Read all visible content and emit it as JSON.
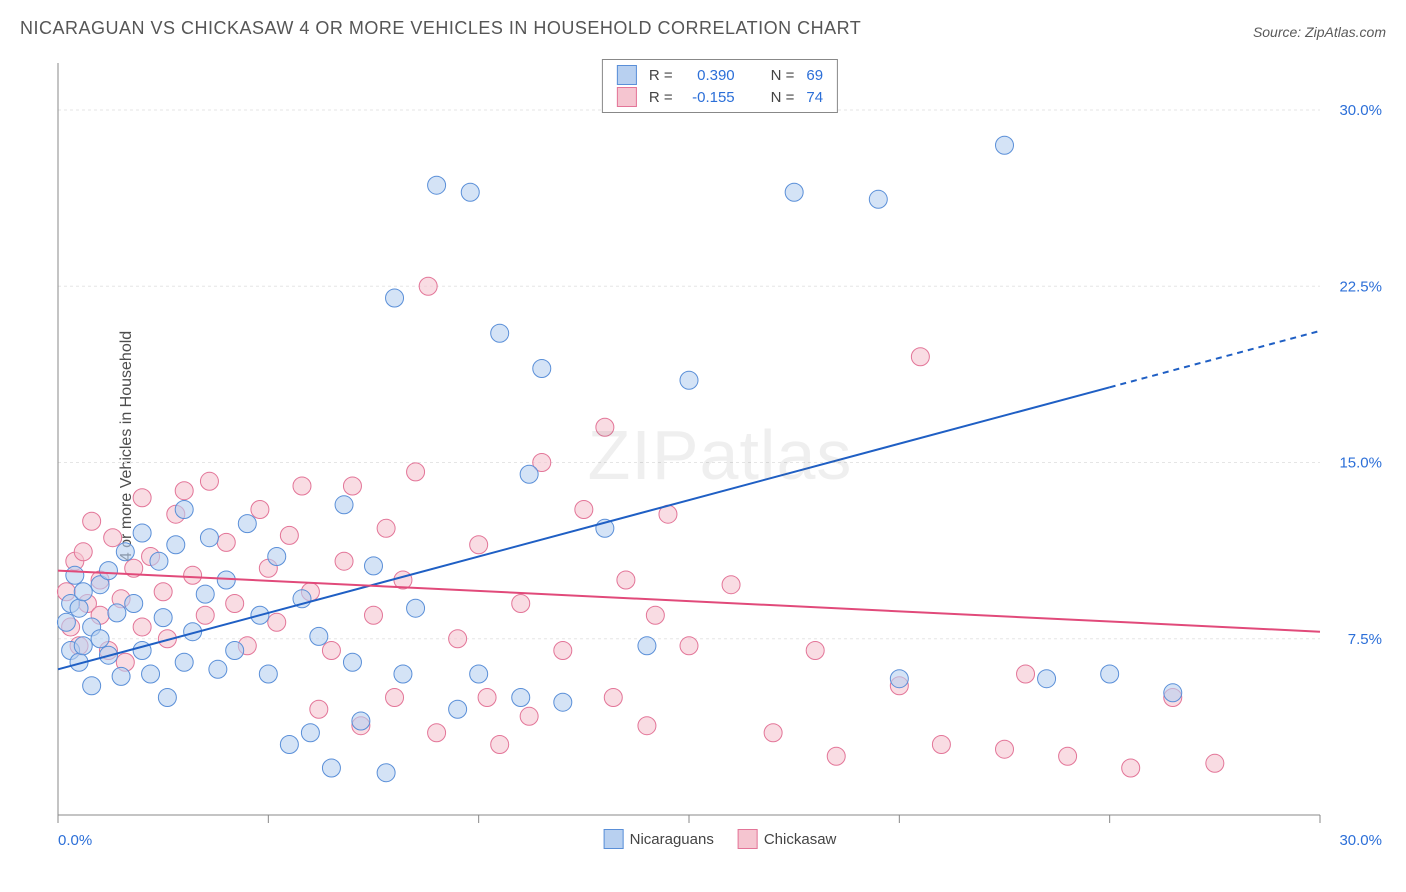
{
  "title": "NICARAGUAN VS CHICKASAW 4 OR MORE VEHICLES IN HOUSEHOLD CORRELATION CHART",
  "source_label": "Source: ZipAtlas.com",
  "ylabel": "4 or more Vehicles in Household",
  "watermark": "ZIPatlas",
  "chart": {
    "type": "scatter-correlation",
    "x_domain": [
      0,
      30
    ],
    "y_domain": [
      0,
      32
    ],
    "x_min_label": "0.0%",
    "x_max_label": "30.0%",
    "y_ticks": [
      7.5,
      15.0,
      22.5,
      30.0
    ],
    "y_tick_labels": [
      "7.5%",
      "15.0%",
      "22.5%",
      "30.0%"
    ],
    "x_minor_step": 5,
    "background_color": "#ffffff",
    "grid_color": "#e5e5e5",
    "axis_color": "#888888",
    "tick_label_color": "#2c6fd8",
    "series": [
      {
        "name": "Nicaraguans",
        "fill": "#b8d0f0",
        "stroke": "#5a8fd8",
        "marker_radius": 9,
        "marker_opacity": 0.6,
        "R": "0.390",
        "N": "69",
        "trend": {
          "x1": 0,
          "y1": 6.2,
          "x2": 25,
          "y2": 18.2,
          "dash_from_x": 25,
          "dash_to_x": 30,
          "dash_to_y": 20.6,
          "color": "#1f5fc4",
          "width": 2
        },
        "points": [
          [
            0.2,
            8.2
          ],
          [
            0.3,
            7.0
          ],
          [
            0.3,
            9.0
          ],
          [
            0.4,
            10.2
          ],
          [
            0.5,
            6.5
          ],
          [
            0.5,
            8.8
          ],
          [
            0.6,
            7.2
          ],
          [
            0.6,
            9.5
          ],
          [
            0.8,
            5.5
          ],
          [
            0.8,
            8.0
          ],
          [
            1.0,
            9.8
          ],
          [
            1.0,
            7.5
          ],
          [
            1.2,
            6.8
          ],
          [
            1.2,
            10.4
          ],
          [
            1.4,
            8.6
          ],
          [
            1.5,
            5.9
          ],
          [
            1.6,
            11.2
          ],
          [
            1.8,
            9.0
          ],
          [
            2.0,
            7.0
          ],
          [
            2.0,
            12.0
          ],
          [
            2.2,
            6.0
          ],
          [
            2.4,
            10.8
          ],
          [
            2.5,
            8.4
          ],
          [
            2.6,
            5.0
          ],
          [
            2.8,
            11.5
          ],
          [
            3.0,
            6.5
          ],
          [
            3.0,
            13.0
          ],
          [
            3.2,
            7.8
          ],
          [
            3.5,
            9.4
          ],
          [
            3.6,
            11.8
          ],
          [
            3.8,
            6.2
          ],
          [
            4.0,
            10.0
          ],
          [
            4.2,
            7.0
          ],
          [
            4.5,
            12.4
          ],
          [
            4.8,
            8.5
          ],
          [
            5.0,
            6.0
          ],
          [
            5.2,
            11.0
          ],
          [
            5.5,
            3.0
          ],
          [
            5.8,
            9.2
          ],
          [
            6.0,
            3.5
          ],
          [
            6.2,
            7.6
          ],
          [
            6.5,
            2.0
          ],
          [
            6.8,
            13.2
          ],
          [
            7.0,
            6.5
          ],
          [
            7.2,
            4.0
          ],
          [
            7.5,
            10.6
          ],
          [
            7.8,
            1.8
          ],
          [
            8.0,
            22.0
          ],
          [
            8.2,
            6.0
          ],
          [
            8.5,
            8.8
          ],
          [
            9.0,
            26.8
          ],
          [
            9.5,
            4.5
          ],
          [
            9.8,
            26.5
          ],
          [
            10.0,
            6.0
          ],
          [
            10.5,
            20.5
          ],
          [
            11.0,
            5.0
          ],
          [
            11.2,
            14.5
          ],
          [
            11.5,
            19.0
          ],
          [
            12.0,
            4.8
          ],
          [
            13.0,
            12.2
          ],
          [
            14.0,
            7.2
          ],
          [
            15.0,
            18.5
          ],
          [
            17.5,
            26.5
          ],
          [
            19.5,
            26.2
          ],
          [
            20.0,
            5.8
          ],
          [
            22.5,
            28.5
          ],
          [
            23.5,
            5.8
          ],
          [
            25.0,
            6.0
          ],
          [
            26.5,
            5.2
          ]
        ]
      },
      {
        "name": "Chickasaw",
        "fill": "#f5c5d0",
        "stroke": "#e37598",
        "marker_radius": 9,
        "marker_opacity": 0.6,
        "R": "-0.155",
        "N": "74",
        "trend": {
          "x1": 0,
          "y1": 10.4,
          "x2": 30,
          "y2": 7.8,
          "color": "#e14a7a",
          "width": 2
        },
        "points": [
          [
            0.2,
            9.5
          ],
          [
            0.3,
            8.0
          ],
          [
            0.4,
            10.8
          ],
          [
            0.5,
            7.2
          ],
          [
            0.6,
            11.2
          ],
          [
            0.7,
            9.0
          ],
          [
            0.8,
            12.5
          ],
          [
            1.0,
            8.5
          ],
          [
            1.0,
            10.0
          ],
          [
            1.2,
            7.0
          ],
          [
            1.3,
            11.8
          ],
          [
            1.5,
            9.2
          ],
          [
            1.6,
            6.5
          ],
          [
            1.8,
            10.5
          ],
          [
            2.0,
            8.0
          ],
          [
            2.0,
            13.5
          ],
          [
            2.2,
            11.0
          ],
          [
            2.5,
            9.5
          ],
          [
            2.6,
            7.5
          ],
          [
            2.8,
            12.8
          ],
          [
            3.0,
            13.8
          ],
          [
            3.2,
            10.2
          ],
          [
            3.5,
            8.5
          ],
          [
            3.6,
            14.2
          ],
          [
            4.0,
            11.6
          ],
          [
            4.2,
            9.0
          ],
          [
            4.5,
            7.2
          ],
          [
            4.8,
            13.0
          ],
          [
            5.0,
            10.5
          ],
          [
            5.2,
            8.2
          ],
          [
            5.5,
            11.9
          ],
          [
            5.8,
            14.0
          ],
          [
            6.0,
            9.5
          ],
          [
            6.2,
            4.5
          ],
          [
            6.5,
            7.0
          ],
          [
            6.8,
            10.8
          ],
          [
            7.0,
            14.0
          ],
          [
            7.2,
            3.8
          ],
          [
            7.5,
            8.5
          ],
          [
            7.8,
            12.2
          ],
          [
            8.0,
            5.0
          ],
          [
            8.2,
            10.0
          ],
          [
            8.5,
            14.6
          ],
          [
            8.8,
            22.5
          ],
          [
            9.0,
            3.5
          ],
          [
            9.5,
            7.5
          ],
          [
            10.0,
            11.5
          ],
          [
            10.2,
            5.0
          ],
          [
            10.5,
            3.0
          ],
          [
            11.0,
            9.0
          ],
          [
            11.2,
            4.2
          ],
          [
            11.5,
            15.0
          ],
          [
            12.0,
            7.0
          ],
          [
            12.5,
            13.0
          ],
          [
            13.0,
            16.5
          ],
          [
            13.2,
            5.0
          ],
          [
            13.5,
            10.0
          ],
          [
            14.0,
            3.8
          ],
          [
            14.2,
            8.5
          ],
          [
            14.5,
            12.8
          ],
          [
            15.0,
            7.2
          ],
          [
            16.0,
            9.8
          ],
          [
            17.0,
            3.5
          ],
          [
            18.0,
            7.0
          ],
          [
            18.5,
            2.5
          ],
          [
            20.0,
            5.5
          ],
          [
            20.5,
            19.5
          ],
          [
            21.0,
            3.0
          ],
          [
            22.5,
            2.8
          ],
          [
            23.0,
            6.0
          ],
          [
            24.0,
            2.5
          ],
          [
            25.5,
            2.0
          ],
          [
            26.5,
            5.0
          ],
          [
            27.5,
            2.2
          ]
        ]
      }
    ]
  },
  "legend_top": {
    "rows": [
      {
        "swatch_fill": "#b8d0f0",
        "swatch_stroke": "#5a8fd8",
        "r_label": "R =",
        "r_val": "0.390",
        "n_label": "N =",
        "n_val": "69"
      },
      {
        "swatch_fill": "#f5c5d0",
        "swatch_stroke": "#e37598",
        "r_label": "R =",
        "r_val": "-0.155",
        "n_label": "N =",
        "n_val": "74"
      }
    ]
  },
  "legend_bottom": {
    "items": [
      {
        "label": "Nicaraguans",
        "fill": "#b8d0f0",
        "stroke": "#5a8fd8"
      },
      {
        "label": "Chickasaw",
        "fill": "#f5c5d0",
        "stroke": "#e37598"
      }
    ]
  }
}
